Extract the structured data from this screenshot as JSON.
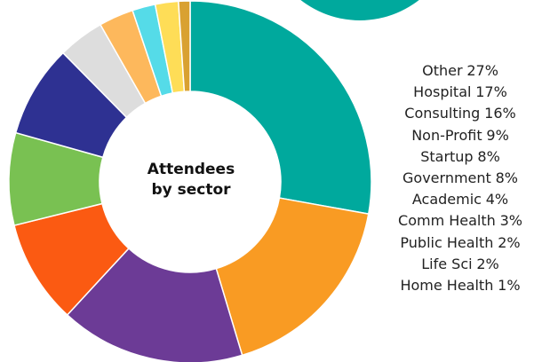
{
  "chart_data": {
    "type": "donut",
    "title": "Attendees by sector",
    "categories": [
      "Other",
      "Hospital",
      "Consulting",
      "Non-Profit",
      "Startup",
      "Government",
      "Academic",
      "Comm Health",
      "Public Health",
      "Life Sci",
      "Home Health"
    ],
    "values": [
      27,
      17,
      16,
      9,
      8,
      8,
      4,
      3,
      2,
      2,
      1
    ],
    "value_labels": [
      "27%",
      "17%",
      "16%",
      "9%",
      "8%",
      "8%",
      "4%",
      "3%",
      "2%",
      "2%",
      "1%"
    ],
    "colors": [
      "#00a99d",
      "#f99b23",
      "#6c3b96",
      "#fb5a12",
      "#79c152",
      "#2e3192",
      "#dddddd",
      "#fdb85c",
      "#55dbe8",
      "#fedd57",
      "#d9a131"
    ]
  }
}
